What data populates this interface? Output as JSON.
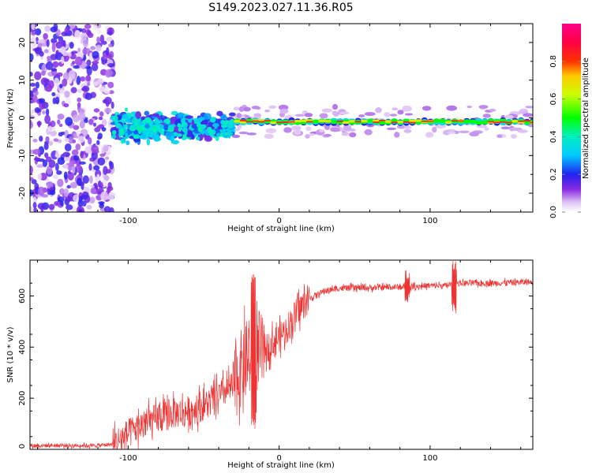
{
  "figure": {
    "title": "S149.2023.027.11.36.R05"
  },
  "chart_data": [
    {
      "type": "heatmap",
      "name": "spectrogram",
      "xlabel": "Height of straight line (km)",
      "ylabel": "Frequency (Hz)",
      "xlim": [
        -165,
        168
      ],
      "ylim": [
        -25,
        25
      ],
      "xticks": [
        -100,
        0,
        100
      ],
      "xtick_labels": [
        "-100",
        "0",
        "100"
      ],
      "yticks": [
        -20,
        -10,
        0,
        10,
        20
      ],
      "ytick_labels": [
        "-20",
        "-10",
        "0",
        "10",
        "20"
      ],
      "colorbar": {
        "label": "Normalized spectral amplitude",
        "range": [
          0,
          1
        ],
        "ticks": [
          0.0,
          0.2,
          0.4,
          0.6,
          0.8
        ],
        "tick_labels": [
          "0.0",
          "0.2",
          "0.4",
          "0.6",
          "0.8"
        ],
        "colormap": "hsv-like (white-violet-blue-cyan-green-yellow-red-magenta)"
      },
      "regions": [
        {
          "x": [
            -165,
            -110
          ],
          "y": [
            -25,
            25
          ],
          "amplitude": [
            0.02,
            0.2
          ],
          "pattern": "noise"
        },
        {
          "x": [
            -110,
            -30
          ],
          "y": [
            -8,
            3
          ],
          "amplitude": [
            0.1,
            0.45
          ],
          "pattern": "broad"
        },
        {
          "x": [
            -30,
            168
          ],
          "y": [
            -2,
            0
          ],
          "amplitude": [
            0.4,
            0.9
          ],
          "pattern": "line"
        }
      ]
    },
    {
      "type": "line",
      "name": "snr",
      "xlabel": "Height of straight line (km)",
      "ylabel": "SNR (10 * v/v)",
      "xlim": [
        -165,
        168
      ],
      "ylim": [
        0,
        740
      ],
      "xticks": [
        -100,
        0,
        100
      ],
      "xtick_labels": [
        "-100",
        "0",
        "100"
      ],
      "yticks": [
        0,
        200,
        400,
        600
      ],
      "ytick_labels": [
        "0",
        "200",
        "400",
        "600"
      ],
      "color": "#ee3333",
      "series": [
        {
          "name": "SNR",
          "x": [
            -165,
            -120,
            -110,
            -100,
            -90,
            -80,
            -70,
            -60,
            -50,
            -40,
            -30,
            -25,
            -20,
            -15,
            -10,
            -5,
            0,
            5,
            10,
            15,
            20,
            30,
            40,
            60,
            80,
            90,
            100,
            110,
            115,
            120,
            140,
            168
          ],
          "y": [
            15,
            15,
            20,
            60,
            100,
            120,
            140,
            150,
            170,
            210,
            250,
            320,
            350,
            370,
            390,
            410,
            440,
            470,
            520,
            560,
            590,
            620,
            630,
            632,
            635,
            638,
            640,
            640,
            645,
            650,
            650,
            655
          ]
        }
      ],
      "noise_amplitude": [
        {
          "x": [
            -165,
            -110
          ],
          "amp": 8
        },
        {
          "x": [
            -110,
            -30
          ],
          "amp": 60
        },
        {
          "x": [
            -30,
            -10
          ],
          "amp": 150
        },
        {
          "x": [
            -10,
            20
          ],
          "amp": 60
        },
        {
          "x": [
            20,
            168
          ],
          "amp": 12
        }
      ],
      "spikes": [
        {
          "x": -17,
          "y_low": 80,
          "y_high": 690
        },
        {
          "x": 85,
          "y_low": 575,
          "y_high": 700
        },
        {
          "x": 116,
          "y_low": 530,
          "y_high": 740
        }
      ]
    }
  ]
}
